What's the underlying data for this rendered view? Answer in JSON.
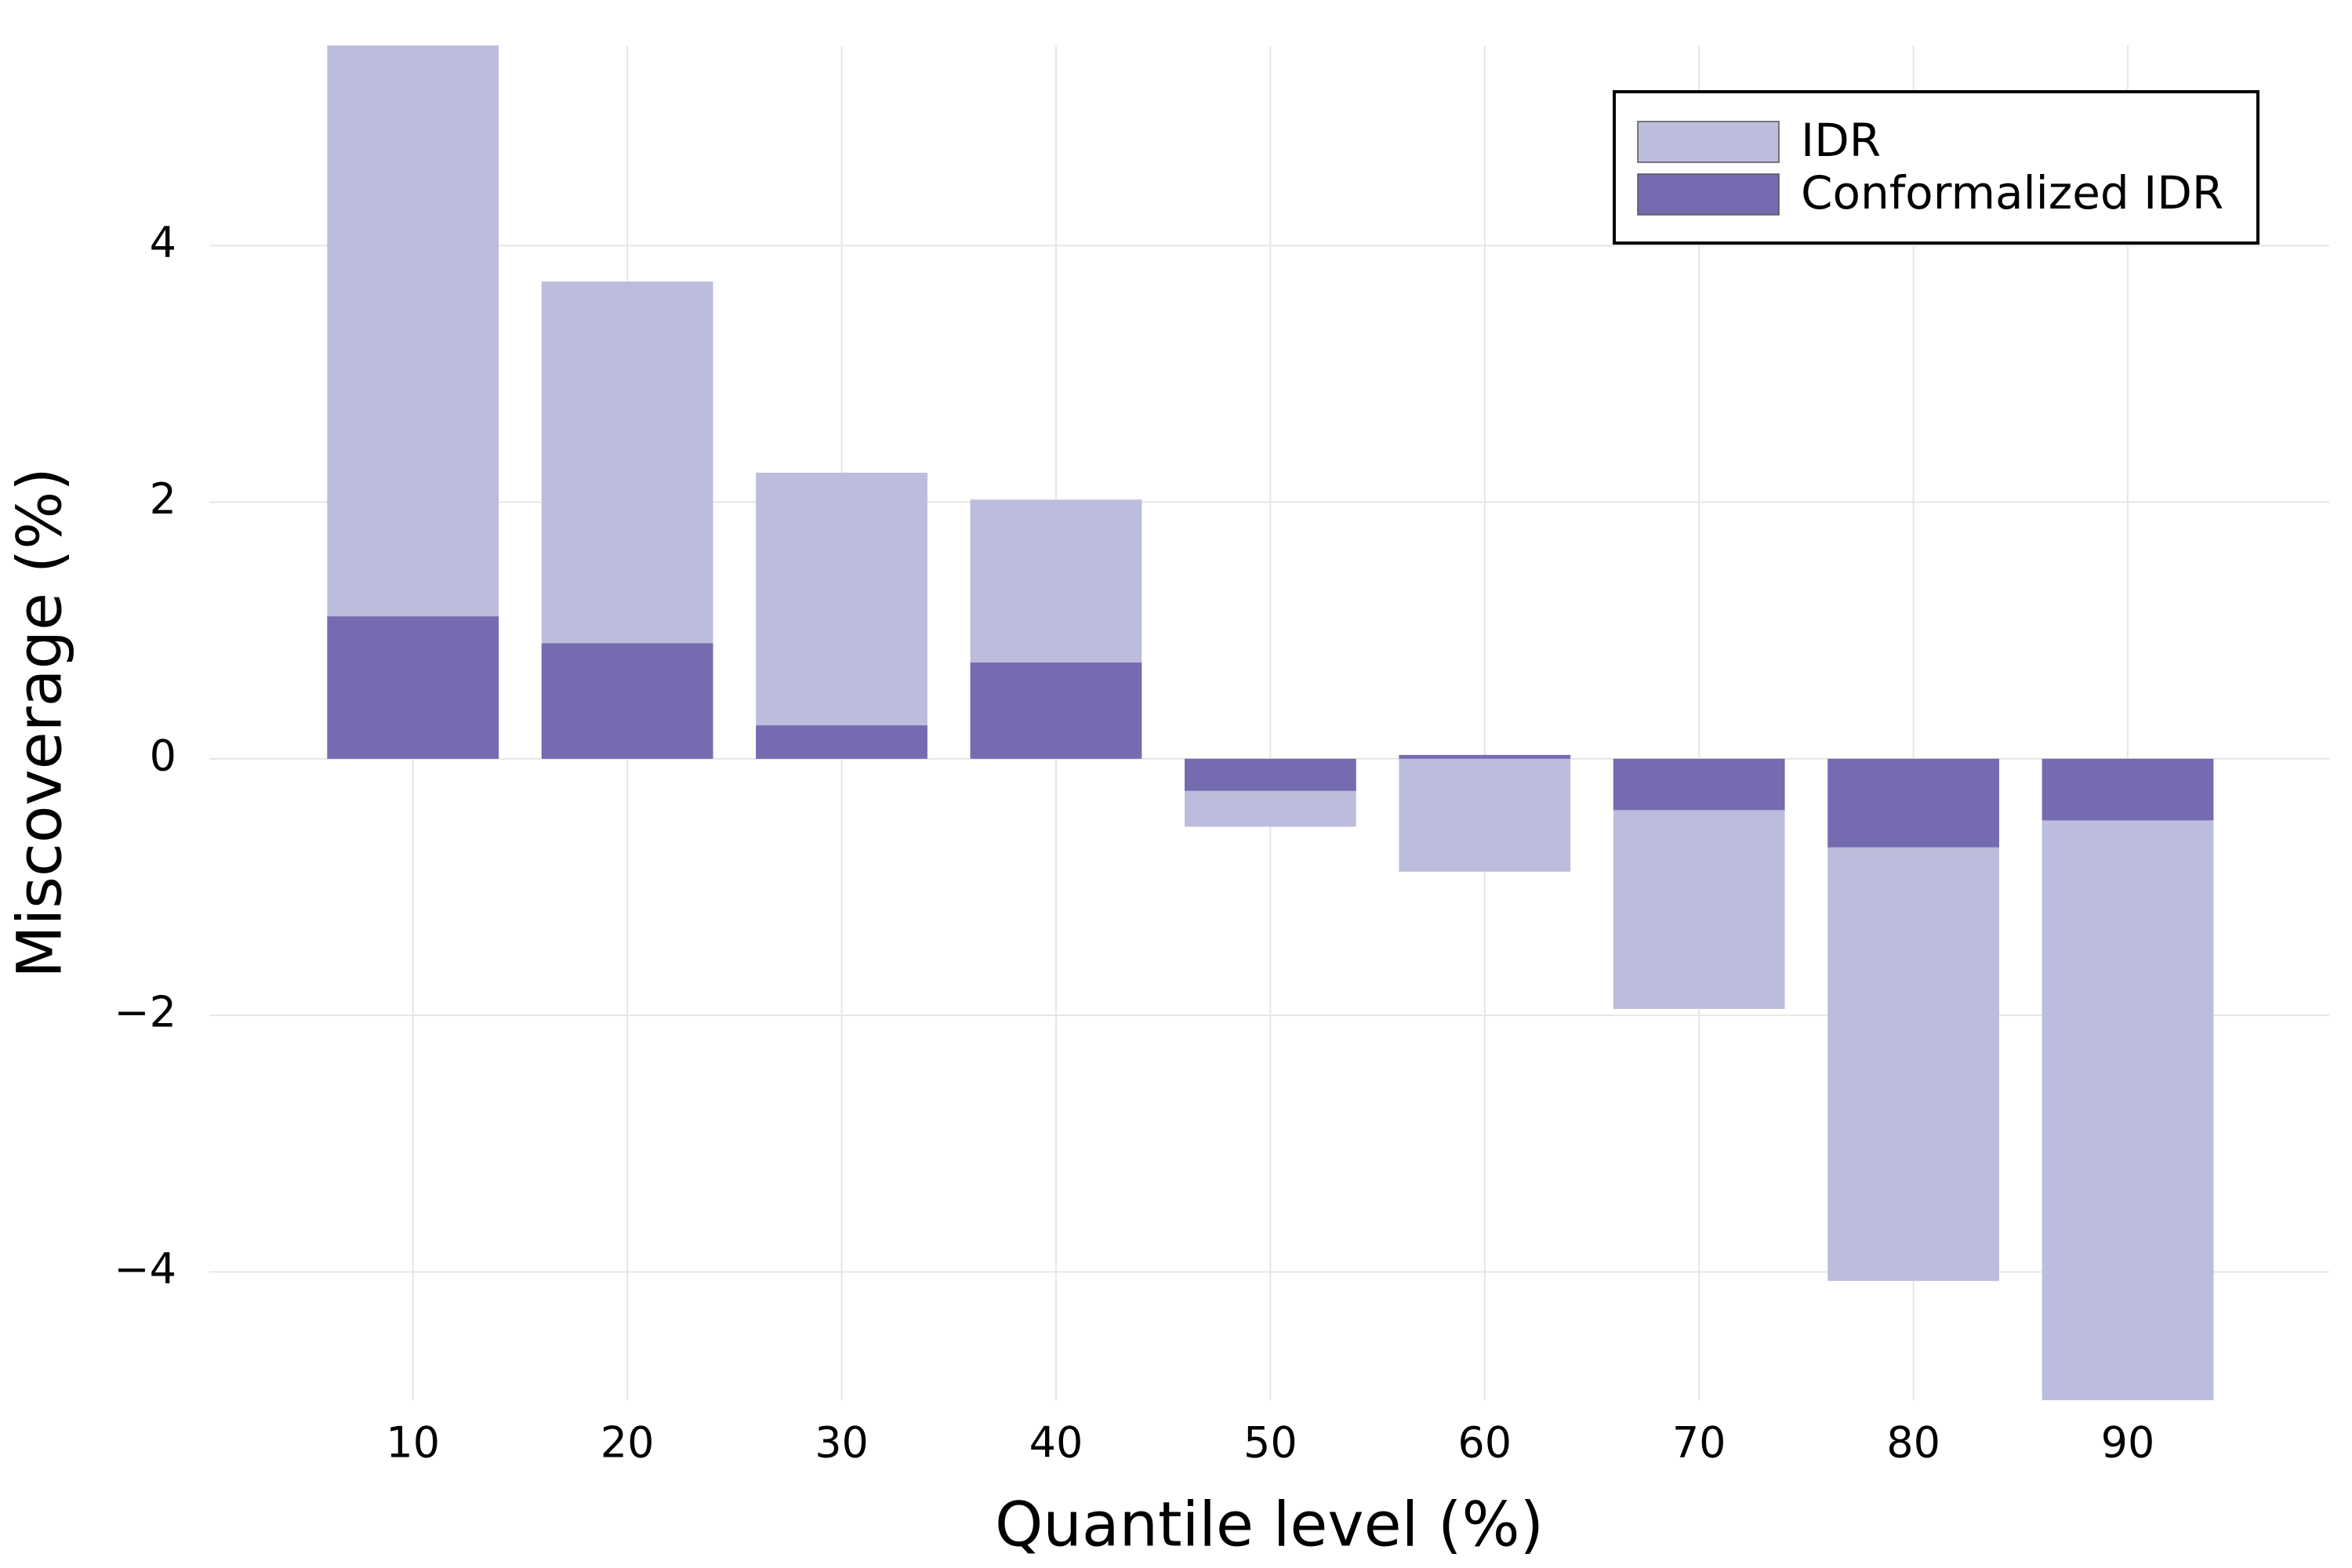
{
  "chart_data": {
    "type": "bar",
    "x": [
      10,
      20,
      30,
      40,
      50,
      60,
      70,
      80,
      90
    ],
    "series": [
      {
        "name": "IDR",
        "color": "#bcbddc",
        "values": [
          5.56,
          3.72,
          2.23,
          2.02,
          -0.53,
          -0.88,
          -1.95,
          -4.07,
          -5.0
        ]
      },
      {
        "name": "Conformalized IDR",
        "color": "#756bb1",
        "values": [
          1.11,
          0.9,
          0.26,
          0.75,
          -0.25,
          0.03,
          -0.4,
          -0.69,
          -0.48
        ]
      }
    ],
    "xlabel": "Quantile level (%)",
    "ylabel": "Miscoverage (%)",
    "xlim": [
      0.5,
      99.4
    ],
    "xticks": [
      10,
      20,
      30,
      40,
      50,
      60,
      70,
      80,
      90
    ],
    "ylim": [
      -5,
      5.56
    ],
    "yticks": [
      {
        "value": -4,
        "label": "−4"
      },
      {
        "value": -2,
        "label": "−2"
      },
      0,
      2,
      4
    ],
    "grid": true,
    "legend": "upper right"
  }
}
